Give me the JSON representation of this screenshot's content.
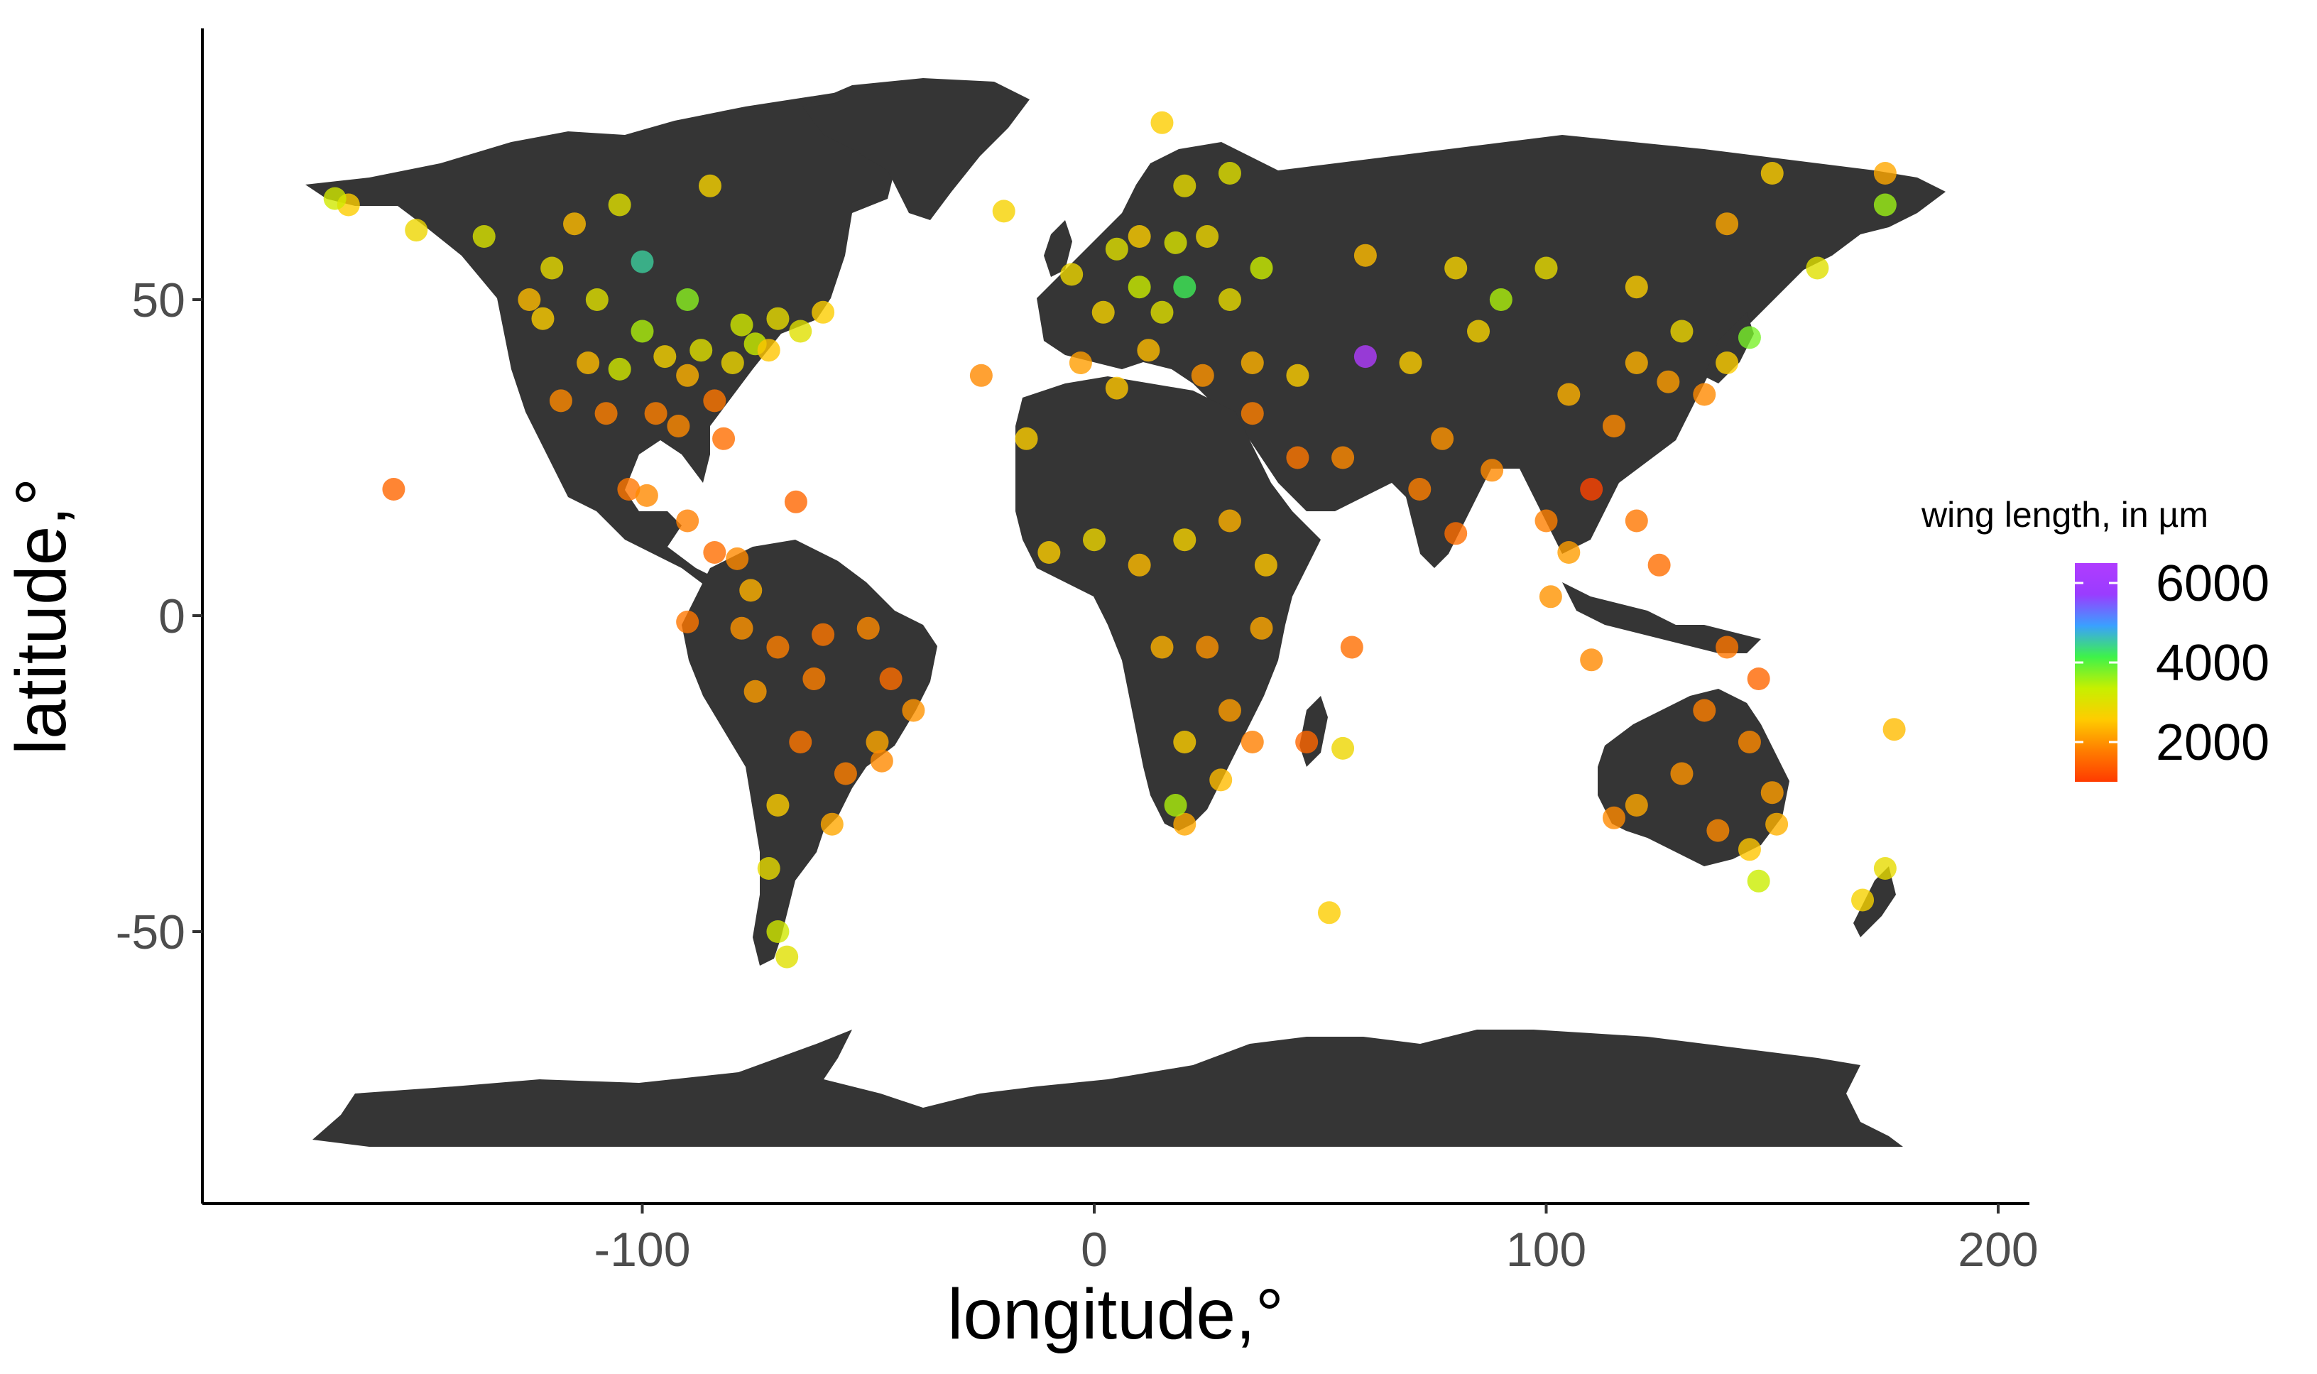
{
  "chart_data": {
    "type": "scatter",
    "title": "",
    "xlabel": "longitude,°",
    "ylabel": "latitude,°",
    "xlim": [
      -200,
      205
    ],
    "ylim": [
      -95,
      92
    ],
    "x_ticks": [
      -100,
      0,
      100,
      200
    ],
    "y_ticks": [
      -50,
      0,
      50
    ],
    "x_tick_labels": [
      "-100",
      "0",
      "100",
      "200"
    ],
    "y_tick_labels": [
      "-50",
      "0",
      "50"
    ],
    "grid": false,
    "background": "world map (land masses)",
    "legend": {
      "title": "wing length, in µm",
      "placement": "right",
      "type": "colorbar",
      "range": [
        1000,
        6500
      ],
      "ticks": [
        6000,
        4000,
        2000
      ],
      "tick_labels": [
        "6000",
        "4000",
        "2000"
      ],
      "colors": [
        "#ff3b00",
        "#ff7e00",
        "#ffcc00",
        "#c6f000",
        "#3ef24a",
        "#3aa0ff",
        "#9a3cff",
        "#b03cff"
      ]
    },
    "points": [
      {
        "lon": -122,
        "lat": 47,
        "v": 2600
      },
      {
        "lon": -118,
        "lat": 34,
        "v": 1900
      },
      {
        "lon": -112,
        "lat": 40,
        "v": 2400
      },
      {
        "lon": -105,
        "lat": 39,
        "v": 3200
      },
      {
        "lon": -97,
        "lat": 32,
        "v": 1800
      },
      {
        "lon": -95,
        "lat": 41,
        "v": 2700
      },
      {
        "lon": -90,
        "lat": 38,
        "v": 2300
      },
      {
        "lon": -87,
        "lat": 42,
        "v": 3000
      },
      {
        "lon": -84,
        "lat": 34,
        "v": 1700
      },
      {
        "lon": -80,
        "lat": 40,
        "v": 2800
      },
      {
        "lon": -75,
        "lat": 43,
        "v": 3300
      },
      {
        "lon": -72,
        "lat": 42,
        "v": 2500
      },
      {
        "lon": -82,
        "lat": 28,
        "v": 1600
      },
      {
        "lon": -92,
        "lat": 30,
        "v": 1900
      },
      {
        "lon": -100,
        "lat": 45,
        "v": 3500
      },
      {
        "lon": -110,
        "lat": 50,
        "v": 3000
      },
      {
        "lon": -120,
        "lat": 55,
        "v": 2900
      },
      {
        "lon": -125,
        "lat": 50,
        "v": 2400
      },
      {
        "lon": -135,
        "lat": 60,
        "v": 3100
      },
      {
        "lon": -150,
        "lat": 61,
        "v": 2800
      },
      {
        "lon": -165,
        "lat": 65,
        "v": 2600
      },
      {
        "lon": -100,
        "lat": 56,
        "v": 4500
      },
      {
        "lon": -90,
        "lat": 50,
        "v": 3700
      },
      {
        "lon": -78,
        "lat": 46,
        "v": 3200
      },
      {
        "lon": -70,
        "lat": 47,
        "v": 2900
      },
      {
        "lon": -65,
        "lat": 45,
        "v": 3000
      },
      {
        "lon": -60,
        "lat": 48,
        "v": 2600
      },
      {
        "lon": -115,
        "lat": 62,
        "v": 2400
      },
      {
        "lon": -105,
        "lat": 65,
        "v": 3000
      },
      {
        "lon": -85,
        "lat": 68,
        "v": 2700
      },
      {
        "lon": -108,
        "lat": 32,
        "v": 1800
      },
      {
        "lon": -103,
        "lat": 20,
        "v": 1700
      },
      {
        "lon": -99,
        "lat": 19,
        "v": 1900
      },
      {
        "lon": -90,
        "lat": 15,
        "v": 1800
      },
      {
        "lon": -84,
        "lat": 10,
        "v": 1600
      },
      {
        "lon": -79,
        "lat": 9,
        "v": 1900
      },
      {
        "lon": -66,
        "lat": 18,
        "v": 1500
      },
      {
        "lon": -76,
        "lat": 4,
        "v": 2300
      },
      {
        "lon": -78,
        "lat": -2,
        "v": 2000
      },
      {
        "lon": -70,
        "lat": -5,
        "v": 1800
      },
      {
        "lon": -60,
        "lat": -3,
        "v": 1700
      },
      {
        "lon": -50,
        "lat": -2,
        "v": 1900
      },
      {
        "lon": -45,
        "lat": -10,
        "v": 1600
      },
      {
        "lon": -40,
        "lat": -15,
        "v": 2000
      },
      {
        "lon": -48,
        "lat": -20,
        "v": 2200
      },
      {
        "lon": -47,
        "lat": -23,
        "v": 1900
      },
      {
        "lon": -55,
        "lat": -25,
        "v": 1800
      },
      {
        "lon": -58,
        "lat": -33,
        "v": 2200
      },
      {
        "lon": -65,
        "lat": -20,
        "v": 1700
      },
      {
        "lon": -70,
        "lat": -30,
        "v": 2600
      },
      {
        "lon": -72,
        "lat": -40,
        "v": 2900
      },
      {
        "lon": -70,
        "lat": -50,
        "v": 3200
      },
      {
        "lon": -68,
        "lat": -54,
        "v": 3000
      },
      {
        "lon": -62,
        "lat": -10,
        "v": 1800
      },
      {
        "lon": -75,
        "lat": -12,
        "v": 2100
      },
      {
        "lon": -155,
        "lat": 20,
        "v": 1500
      },
      {
        "lon": -90,
        "lat": -1,
        "v": 1700
      },
      {
        "lon": -3,
        "lat": 40,
        "v": 2100
      },
      {
        "lon": 2,
        "lat": 48,
        "v": 2700
      },
      {
        "lon": 10,
        "lat": 52,
        "v": 3300
      },
      {
        "lon": 15,
        "lat": 48,
        "v": 3000
      },
      {
        "lon": 20,
        "lat": 52,
        "v": 4200
      },
      {
        "lon": 12,
        "lat": 42,
        "v": 2400
      },
      {
        "lon": 24,
        "lat": 38,
        "v": 2000
      },
      {
        "lon": 30,
        "lat": 50,
        "v": 2900
      },
      {
        "lon": 37,
        "lat": 55,
        "v": 3300
      },
      {
        "lon": 25,
        "lat": 60,
        "v": 2800
      },
      {
        "lon": 18,
        "lat": 59,
        "v": 3100
      },
      {
        "lon": 10,
        "lat": 60,
        "v": 2600
      },
      {
        "lon": 5,
        "lat": 58,
        "v": 3000
      },
      {
        "lon": -5,
        "lat": 54,
        "v": 2800
      },
      {
        "lon": -20,
        "lat": 64,
        "v": 2700
      },
      {
        "lon": 20,
        "lat": 68,
        "v": 2900
      },
      {
        "lon": 30,
        "lat": 70,
        "v": 3000
      },
      {
        "lon": 15,
        "lat": 78,
        "v": 2600
      },
      {
        "lon": 35,
        "lat": 40,
        "v": 2300
      },
      {
        "lon": 45,
        "lat": 38,
        "v": 2600
      },
      {
        "lon": 35,
        "lat": 32,
        "v": 1800
      },
      {
        "lon": 45,
        "lat": 25,
        "v": 1700
      },
      {
        "lon": 55,
        "lat": 25,
        "v": 1900
      },
      {
        "lon": 60,
        "lat": 41,
        "v": 6500
      },
      {
        "lon": 70,
        "lat": 40,
        "v": 2600
      },
      {
        "lon": 77,
        "lat": 28,
        "v": 2000
      },
      {
        "lon": 80,
        "lat": 13,
        "v": 1600
      },
      {
        "lon": 72,
        "lat": 20,
        "v": 1800
      },
      {
        "lon": 88,
        "lat": 23,
        "v": 1900
      },
      {
        "lon": 85,
        "lat": 45,
        "v": 2700
      },
      {
        "lon": 90,
        "lat": 50,
        "v": 3500
      },
      {
        "lon": 105,
        "lat": 35,
        "v": 2300
      },
      {
        "lon": 110,
        "lat": 20,
        "v": 1100
      },
      {
        "lon": 115,
        "lat": 30,
        "v": 1900
      },
      {
        "lon": 120,
        "lat": 40,
        "v": 2300
      },
      {
        "lon": 127,
        "lat": 37,
        "v": 2100
      },
      {
        "lon": 135,
        "lat": 35,
        "v": 1900
      },
      {
        "lon": 140,
        "lat": 40,
        "v": 2600
      },
      {
        "lon": 145,
        "lat": 44,
        "v": 3800
      },
      {
        "lon": 130,
        "lat": 45,
        "v": 2800
      },
      {
        "lon": 120,
        "lat": 52,
        "v": 2600
      },
      {
        "lon": 100,
        "lat": 55,
        "v": 2900
      },
      {
        "lon": 80,
        "lat": 55,
        "v": 2700
      },
      {
        "lon": 60,
        "lat": 57,
        "v": 2400
      },
      {
        "lon": 140,
        "lat": 62,
        "v": 2200
      },
      {
        "lon": 160,
        "lat": 55,
        "v": 3000
      },
      {
        "lon": 175,
        "lat": 65,
        "v": 3600
      },
      {
        "lon": 150,
        "lat": 70,
        "v": 2600
      },
      {
        "lon": 100,
        "lat": 15,
        "v": 1800
      },
      {
        "lon": 105,
        "lat": 10,
        "v": 2100
      },
      {
        "lon": 101,
        "lat": 3,
        "v": 2000
      },
      {
        "lon": 110,
        "lat": -7,
        "v": 1900
      },
      {
        "lon": 120,
        "lat": 15,
        "v": 1700
      },
      {
        "lon": 125,
        "lat": 8,
        "v": 1600
      },
      {
        "lon": 140,
        "lat": -5,
        "v": 1700
      },
      {
        "lon": 147,
        "lat": -10,
        "v": 1500
      },
      {
        "lon": -10,
        "lat": 10,
        "v": 2600
      },
      {
        "lon": 0,
        "lat": 12,
        "v": 2800
      },
      {
        "lon": 10,
        "lat": 8,
        "v": 2400
      },
      {
        "lon": 20,
        "lat": 12,
        "v": 2700
      },
      {
        "lon": 30,
        "lat": 15,
        "v": 2300
      },
      {
        "lon": 38,
        "lat": 8,
        "v": 2500
      },
      {
        "lon": 37,
        "lat": -2,
        "v": 2200
      },
      {
        "lon": 25,
        "lat": -5,
        "v": 2000
      },
      {
        "lon": 15,
        "lat": -5,
        "v": 2300
      },
      {
        "lon": 30,
        "lat": -15,
        "v": 2100
      },
      {
        "lon": 20,
        "lat": -20,
        "v": 2600
      },
      {
        "lon": 28,
        "lat": -26,
        "v": 2400
      },
      {
        "lon": 20,
        "lat": -33,
        "v": 2200
      },
      {
        "lon": 18,
        "lat": -30,
        "v": 3500
      },
      {
        "lon": 35,
        "lat": -20,
        "v": 1800
      },
      {
        "lon": 47,
        "lat": -20,
        "v": 1500
      },
      {
        "lon": 55,
        "lat": -21,
        "v": 2800
      },
      {
        "lon": 52,
        "lat": -47,
        "v": 2600
      },
      {
        "lon": 57,
        "lat": -5,
        "v": 1600
      },
      {
        "lon": -15,
        "lat": 28,
        "v": 2600
      },
      {
        "lon": -25,
        "lat": 38,
        "v": 1900
      },
      {
        "lon": 5,
        "lat": 36,
        "v": 2500
      },
      {
        "lon": 120,
        "lat": -30,
        "v": 2200
      },
      {
        "lon": 115,
        "lat": -32,
        "v": 1900
      },
      {
        "lon": 130,
        "lat": -25,
        "v": 2000
      },
      {
        "lon": 135,
        "lat": -15,
        "v": 1800
      },
      {
        "lon": 145,
        "lat": -20,
        "v": 1900
      },
      {
        "lon": 150,
        "lat": -28,
        "v": 2100
      },
      {
        "lon": 151,
        "lat": -33,
        "v": 2300
      },
      {
        "lon": 145,
        "lat": -37,
        "v": 2500
      },
      {
        "lon": 147,
        "lat": -42,
        "v": 3300
      },
      {
        "lon": 138,
        "lat": -34,
        "v": 1900
      },
      {
        "lon": 175,
        "lat": -40,
        "v": 2900
      },
      {
        "lon": 170,
        "lat": -45,
        "v": 2700
      },
      {
        "lon": 177,
        "lat": -18,
        "v": 2400
      },
      {
        "lon": 175,
        "lat": 70,
        "v": 2200
      },
      {
        "lon": -168,
        "lat": 66,
        "v": 3200
      }
    ]
  }
}
